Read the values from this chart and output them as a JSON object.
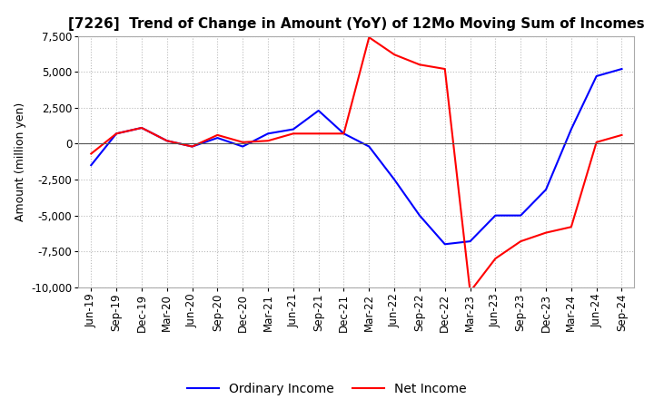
{
  "title": "[7226]  Trend of Change in Amount (YoY) of 12Mo Moving Sum of Incomes",
  "ylabel": "Amount (million yen)",
  "ylim": [
    -10000,
    7500
  ],
  "yticks": [
    -10000,
    -7500,
    -5000,
    -2500,
    0,
    2500,
    5000,
    7500
  ],
  "x_labels": [
    "Jun-19",
    "Sep-19",
    "Dec-19",
    "Mar-20",
    "Jun-20",
    "Sep-20",
    "Dec-20",
    "Mar-21",
    "Jun-21",
    "Sep-21",
    "Dec-21",
    "Mar-22",
    "Jun-22",
    "Sep-22",
    "Dec-22",
    "Mar-23",
    "Jun-23",
    "Sep-23",
    "Dec-23",
    "Mar-24",
    "Jun-24",
    "Sep-24"
  ],
  "ordinary_income": [
    -1500,
    700,
    1100,
    200,
    -200,
    400,
    -200,
    700,
    1000,
    2300,
    700,
    -200,
    -2500,
    -5000,
    -7000,
    -6800,
    -5000,
    -5000,
    -3200,
    1000,
    4700,
    5200
  ],
  "net_income": [
    -700,
    700,
    1100,
    200,
    -200,
    600,
    100,
    200,
    700,
    700,
    700,
    7400,
    6200,
    5500,
    5200,
    -10300,
    -8000,
    -6800,
    -6200,
    -5800,
    100,
    600
  ],
  "ordinary_color": "#0000ff",
  "net_color": "#ff0000",
  "background_color": "#ffffff",
  "grid_color": "#bbbbbb",
  "title_fontsize": 11,
  "label_fontsize": 9,
  "tick_fontsize": 8.5,
  "legend_fontsize": 10
}
